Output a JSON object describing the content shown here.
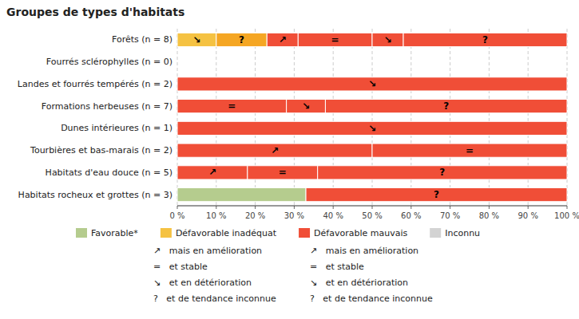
{
  "chart_data": {
    "type": "bar",
    "orientation": "horizontal",
    "stacked": true,
    "title": "Groupes de types d'habitats",
    "categories": [
      "Forêts (n = 8)",
      "Fourrés sclérophylles (n = 0)",
      "Landes et fourrés tempérés (n = 2)",
      "Formations herbeuses (n = 7)",
      "Dunes intérieures (n = 1)",
      "Tourbières et bas-marais (n = 2)",
      "Habitats d'eau douce (n = 5)",
      "Habitats rocheux et grottes (n = 3)"
    ],
    "series": [
      {
        "values": [
          10,
          null,
          100,
          28,
          100,
          50,
          18,
          33
        ],
        "colors": [
          "#f5c242",
          null,
          "#f04e37",
          "#f04e37",
          "#f04e37",
          "#f04e37",
          "#f04e37",
          "#b5cc8e"
        ]
      },
      {
        "values": [
          13,
          null,
          null,
          10,
          null,
          50,
          18,
          67
        ],
        "colors": [
          "#f5a623",
          null,
          null,
          "#f04e37",
          null,
          "#f04e37",
          "#f04e37",
          "#f04e37"
        ]
      },
      {
        "values": [
          8,
          null,
          null,
          62,
          null,
          null,
          64,
          null
        ],
        "colors": [
          "#f04e37",
          null,
          null,
          "#f04e37",
          null,
          null,
          "#f04e37",
          null
        ]
      },
      {
        "values": [
          19,
          null,
          null,
          null,
          null,
          null,
          null,
          null
        ],
        "colors": [
          "#f04e37",
          null,
          null,
          null,
          null,
          null,
          null,
          null
        ]
      },
      {
        "values": [
          8,
          null,
          null,
          null,
          null,
          null,
          null,
          null
        ],
        "colors": [
          "#f04e37",
          null,
          null,
          null,
          null,
          null,
          null,
          null
        ]
      },
      {
        "values": [
          42,
          null,
          null,
          null,
          null,
          null,
          null,
          null
        ],
        "colors": [
          "#f04e37",
          null,
          null,
          null,
          null,
          null,
          null,
          null
        ]
      }
    ],
    "annotations": [
      {
        "text": "↘",
        "series": 0,
        "category": 0
      },
      {
        "text": "?",
        "series": 1,
        "category": 0
      },
      {
        "text": "↗",
        "series": 2,
        "category": 0
      },
      {
        "text": "=",
        "series": 3,
        "category": 0
      },
      {
        "text": "↘",
        "series": 4,
        "category": 0
      },
      {
        "text": "?",
        "series": 5,
        "category": 0
      },
      {
        "text": "↘",
        "series": 0,
        "category": 2
      },
      {
        "text": "=",
        "series": 0,
        "category": 3
      },
      {
        "text": "↘",
        "series": 1,
        "category": 3
      },
      {
        "text": "?",
        "series": 2,
        "category": 3
      },
      {
        "text": "↘",
        "series": 0,
        "category": 4
      },
      {
        "text": "↗",
        "series": 0,
        "category": 5
      },
      {
        "text": "=",
        "series": 1,
        "category": 5
      },
      {
        "text": "↗",
        "series": 0,
        "category": 6
      },
      {
        "text": "=",
        "series": 1,
        "category": 6
      },
      {
        "text": "?",
        "series": 2,
        "category": 6
      },
      {
        "text": "?",
        "series": 1,
        "category": 7
      }
    ],
    "legend_colors": [
      {
        "color": "#b5cc8e",
        "label": "Favorable*"
      },
      {
        "color": "#f5c242",
        "label": "Défavorable inadéquat"
      },
      {
        "color": "#f04e37",
        "label": "Défavorable mauvais"
      },
      {
        "color": "#d3d3d3",
        "label": "Inconnu"
      }
    ],
    "legend_symbols_left": [
      "↗   mais en amélioration",
      "=   et stable",
      "↘   et en détérioration",
      "?   et de tendance inconnue"
    ],
    "legend_symbols_right": [
      "↗   mais en amélioration",
      "=   et stable",
      "↘   et en détérioration",
      "?   et de tendance inconnue"
    ],
    "xlim": [
      0,
      100
    ],
    "xticks": [
      {
        "value": 0,
        "label": "0 %"
      },
      {
        "value": 10,
        "label": "10 %"
      },
      {
        "value": 20,
        "label": "20 %"
      },
      {
        "value": 30,
        "label": "30 %"
      },
      {
        "value": 40,
        "label": "40 %"
      },
      {
        "value": 50,
        "label": "50 %"
      },
      {
        "value": 60,
        "label": "60 %"
      },
      {
        "value": 70,
        "label": "70 %"
      },
      {
        "value": 80,
        "label": "80 %"
      },
      {
        "value": 90,
        "label": "90 %"
      },
      {
        "value": 100,
        "label": "100 %"
      }
    ],
    "grid": true
  }
}
